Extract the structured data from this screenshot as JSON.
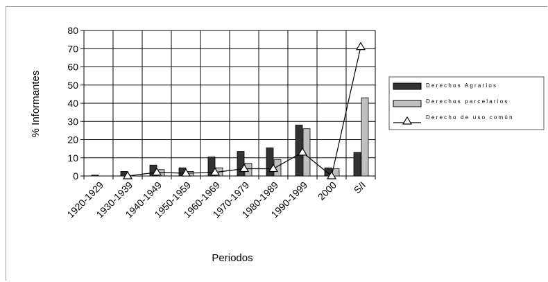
{
  "chart_data": {
    "type": "bar",
    "categories": [
      "1920-1929",
      "1930-1939",
      "1940-1949",
      "1950-1959",
      "1960-1969",
      "1970-1979",
      "1980-1989",
      "1990-1999",
      "2000",
      "S/I"
    ],
    "series": [
      {
        "name": "Derechos Agrarios",
        "type": "bar",
        "values": [
          0.5,
          2.5,
          6,
          4.5,
          10.5,
          13.5,
          15.5,
          28,
          4.5,
          13
        ]
      },
      {
        "name": "Derechos parcelarios",
        "type": "bar",
        "values": [
          0,
          0,
          3.5,
          2.5,
          4.5,
          7,
          9,
          26,
          4,
          43
        ]
      },
      {
        "name": "Derecho de uso común",
        "type": "line",
        "values": [
          null,
          0,
          2,
          1.5,
          2,
          4,
          4,
          13,
          0,
          71
        ]
      }
    ],
    "title": "",
    "xlabel": "Periodos",
    "ylabel": "% Informantes",
    "ylim": [
      0,
      80
    ],
    "yticks": [
      0,
      10,
      20,
      30,
      40,
      50,
      60,
      70,
      80
    ],
    "grid": true,
    "legend": "right",
    "colors": {
      "bar1": "#333333",
      "bar2": "#c0c0c0",
      "line": "#000000"
    }
  }
}
